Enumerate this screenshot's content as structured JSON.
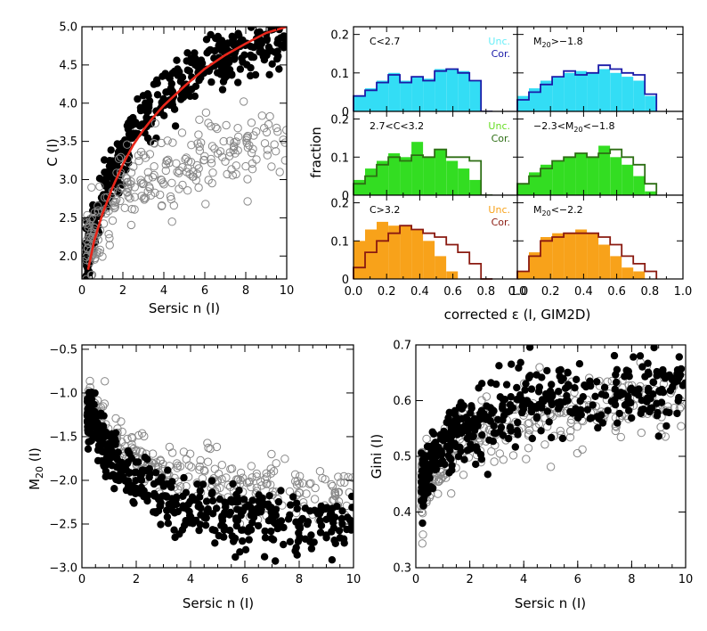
{
  "colors": {
    "red_curve": "#e8261a",
    "cyan_fill": "#33ddf5",
    "blue_outline": "#1a1aa8",
    "green_fill": "#33dd22",
    "darkgreen_outline": "#2d6e14",
    "orange_fill": "#f8a21a",
    "darkred_outline": "#8a1a10",
    "unc_cyan": "#66eef8",
    "unc_green": "#66dd22",
    "unc_orange": "#f8a21a",
    "cor_blue": "#1a1aa8",
    "cor_green": "#2d6e14",
    "cor_red": "#8a1a10"
  },
  "chart_data": [
    {
      "id": "c-vs-n",
      "type": "scatter",
      "xlabel": "Sersic n (I)",
      "ylabel": "C (I)",
      "xlim": [
        0,
        10
      ],
      "ylim": [
        1.7,
        5.0
      ],
      "xticks": [
        0,
        2,
        4,
        6,
        8,
        10
      ],
      "yticks": [
        2.0,
        2.5,
        3.0,
        3.5,
        4.0,
        4.5,
        5.0
      ],
      "ytick_labels": [
        "2.0",
        "2.5",
        "3.0",
        "3.5",
        "4.0",
        "4.5",
        "5.0"
      ],
      "series": [
        {
          "name": "filled",
          "style": "filled-black",
          "trend": {
            "x": [
              0.3,
              0.6,
              1,
              1.5,
              2,
              2.5,
              3,
              3.5,
              4,
              5,
              6,
              7,
              8,
              9,
              10
            ],
            "y": [
              2.0,
              2.35,
              2.75,
              3.05,
              3.35,
              3.6,
              3.8,
              3.95,
              4.05,
              4.3,
              4.5,
              4.6,
              4.7,
              4.8,
              4.85
            ]
          },
          "spread": 0.17,
          "count": 420
        },
        {
          "name": "open",
          "style": "open-gray",
          "trend": {
            "x": [
              0.5,
              1,
              1.5,
              2,
              3,
              4,
              5,
              6,
              8,
              10
            ],
            "y": [
              2.1,
              2.35,
              2.6,
              2.8,
              3.0,
              3.15,
              3.25,
              3.3,
              3.4,
              3.5
            ]
          },
          "spread": 0.26,
          "count": 260
        }
      ],
      "curve": {
        "name": "relation",
        "x": [
          0.3,
          0.6,
          1,
          1.5,
          2,
          2.5,
          3,
          3.5,
          4,
          5,
          6,
          7,
          8,
          9,
          10
        ],
        "y": [
          1.82,
          2.2,
          2.55,
          2.9,
          3.2,
          3.45,
          3.65,
          3.82,
          3.97,
          4.22,
          4.45,
          4.63,
          4.78,
          4.92,
          5.0
        ]
      }
    },
    {
      "id": "eps-histograms",
      "type": "bar",
      "xlabel": "corrected ε (I, GIM2D)",
      "ylabel": "fraction",
      "xlim": [
        0.0,
        1.0
      ],
      "ylim": [
        0,
        0.22
      ],
      "xtick_labels": [
        "0.0",
        "0.2",
        "0.4",
        "0.6",
        "0.8",
        "1.0"
      ],
      "ytick_labels": [
        "0",
        "0.1",
        "0.2"
      ],
      "bin_edges": [
        0.0,
        0.07,
        0.14,
        0.21,
        0.28,
        0.35,
        0.42,
        0.49,
        0.56,
        0.63,
        0.7,
        0.77,
        0.84
      ],
      "panels": [
        {
          "label": "C<2.7",
          "fill": "cyan_fill",
          "edge": "blue_outline",
          "legend": {
            "unc": "Unc.",
            "cor": "Cor.",
            "unc_color": "unc_cyan",
            "cor_color": "cor_blue"
          },
          "unc": [
            0.04,
            0.06,
            0.08,
            0.1,
            0.08,
            0.09,
            0.085,
            0.11,
            0.11,
            0.105,
            0.08,
            0.0
          ],
          "cor": [
            0.04,
            0.055,
            0.075,
            0.095,
            0.075,
            0.09,
            0.08,
            0.105,
            0.11,
            0.1,
            0.08,
            0.0
          ]
        },
        {
          "label": "M20>−1.8",
          "fill": "cyan_fill",
          "edge": "blue_outline",
          "unc": [
            0.04,
            0.06,
            0.08,
            0.09,
            0.1,
            0.105,
            0.1,
            0.11,
            0.1,
            0.09,
            0.08,
            0.04
          ],
          "cor": [
            0.03,
            0.05,
            0.07,
            0.09,
            0.105,
            0.095,
            0.1,
            0.12,
            0.11,
            0.1,
            0.095,
            0.045
          ]
        },
        {
          "label": "2.7<C<3.2",
          "fill": "green_fill",
          "edge": "darkgreen_outline",
          "legend": {
            "unc": "Unc.",
            "cor": "Cor.",
            "unc_color": "unc_green",
            "cor_color": "cor_green"
          },
          "unc": [
            0.04,
            0.07,
            0.09,
            0.11,
            0.1,
            0.14,
            0.1,
            0.12,
            0.09,
            0.07,
            0.04,
            0.0
          ],
          "cor": [
            0.03,
            0.05,
            0.08,
            0.1,
            0.09,
            0.105,
            0.1,
            0.12,
            0.1,
            0.1,
            0.09,
            0.0
          ]
        },
        {
          "label": "−2.3<M20<−1.8",
          "fill": "green_fill",
          "edge": "darkgreen_outline",
          "unc": [
            0.03,
            0.06,
            0.08,
            0.09,
            0.1,
            0.11,
            0.1,
            0.13,
            0.1,
            0.08,
            0.05,
            0.01
          ],
          "cor": [
            0.03,
            0.05,
            0.07,
            0.09,
            0.1,
            0.11,
            0.1,
            0.11,
            0.12,
            0.1,
            0.08,
            0.03
          ]
        },
        {
          "label": "C>3.2",
          "fill": "orange_fill",
          "edge": "darkred_outline",
          "legend": {
            "unc": "Unc.",
            "cor": "Cor.",
            "unc_color": "unc_orange",
            "cor_color": "cor_red"
          },
          "unc": [
            0.1,
            0.13,
            0.15,
            0.14,
            0.14,
            0.13,
            0.1,
            0.06,
            0.02,
            0.0,
            0.0,
            0.0
          ],
          "cor": [
            0.03,
            0.07,
            0.1,
            0.12,
            0.14,
            0.13,
            0.12,
            0.11,
            0.09,
            0.07,
            0.04,
            0.0
          ]
        },
        {
          "label": "M20<−2.2",
          "fill": "orange_fill",
          "edge": "darkred_outline",
          "unc": [
            0.02,
            0.07,
            0.11,
            0.12,
            0.12,
            0.13,
            0.12,
            0.09,
            0.06,
            0.03,
            0.02,
            0.0
          ],
          "cor": [
            0.02,
            0.06,
            0.1,
            0.11,
            0.12,
            0.12,
            0.12,
            0.11,
            0.09,
            0.06,
            0.04,
            0.02
          ]
        }
      ]
    },
    {
      "id": "m20-vs-n",
      "type": "scatter",
      "xlabel": "Sersic n (I)",
      "ylabel": "M20 (I)",
      "xlim": [
        0,
        10
      ],
      "ylim": [
        -3.0,
        -0.45
      ],
      "xticks": [
        0,
        2,
        4,
        6,
        8,
        10
      ],
      "yticks": [
        -3.0,
        -2.5,
        -2.0,
        -1.5,
        -1.0,
        -0.5
      ],
      "ytick_labels": [
        "−3.0",
        "−2.5",
        "−2.0",
        "−1.5",
        "−1.0",
        "−0.5"
      ],
      "series": [
        {
          "name": "open",
          "style": "open-gray",
          "trend": {
            "x": [
              0.3,
              0.7,
              1,
              1.5,
              2,
              3,
              4,
              5,
              6,
              8,
              10
            ],
            "y": [
              -1.1,
              -1.3,
              -1.45,
              -1.65,
              -1.8,
              -1.9,
              -1.95,
              -2.0,
              -2.05,
              -2.1,
              -2.15
            ]
          },
          "spread": 0.16,
          "count": 300
        },
        {
          "name": "filled",
          "style": "filled-black",
          "trend": {
            "x": [
              0.3,
              0.7,
              1,
              1.5,
              2,
              2.5,
              3,
              4,
              5,
              6,
              8,
              10
            ],
            "y": [
              -1.25,
              -1.5,
              -1.7,
              -1.9,
              -2.05,
              -2.15,
              -2.25,
              -2.35,
              -2.4,
              -2.45,
              -2.5,
              -2.55
            ]
          },
          "spread": 0.17,
          "count": 440
        }
      ]
    },
    {
      "id": "gini-vs-n",
      "type": "scatter",
      "xlabel": "Sersic n (I)",
      "ylabel": "Gini (I)",
      "xlim": [
        0,
        10
      ],
      "ylim": [
        0.3,
        0.7
      ],
      "xticks": [
        0,
        2,
        4,
        6,
        8,
        10
      ],
      "yticks": [
        0.3,
        0.4,
        0.5,
        0.6,
        0.7
      ],
      "ytick_labels": [
        "0.3",
        "0.4",
        "0.5",
        "0.6",
        "0.7"
      ],
      "series": [
        {
          "name": "open",
          "style": "open-gray",
          "trend": {
            "x": [
              0.3,
              0.7,
              1,
              1.5,
              2,
              3,
              4,
              5,
              6,
              8,
              10
            ],
            "y": [
              0.45,
              0.48,
              0.5,
              0.52,
              0.54,
              0.56,
              0.57,
              0.575,
              0.58,
              0.585,
              0.59
            ]
          },
          "spread": 0.032,
          "count": 300
        },
        {
          "name": "filled",
          "style": "filled-black",
          "trend": {
            "x": [
              0.3,
              0.7,
              1,
              1.5,
              2,
              3,
              4,
              5,
              6,
              8,
              10
            ],
            "y": [
              0.46,
              0.49,
              0.51,
              0.53,
              0.55,
              0.575,
              0.59,
              0.6,
              0.605,
              0.61,
              0.615
            ]
          },
          "spread": 0.033,
          "count": 440
        }
      ]
    }
  ]
}
